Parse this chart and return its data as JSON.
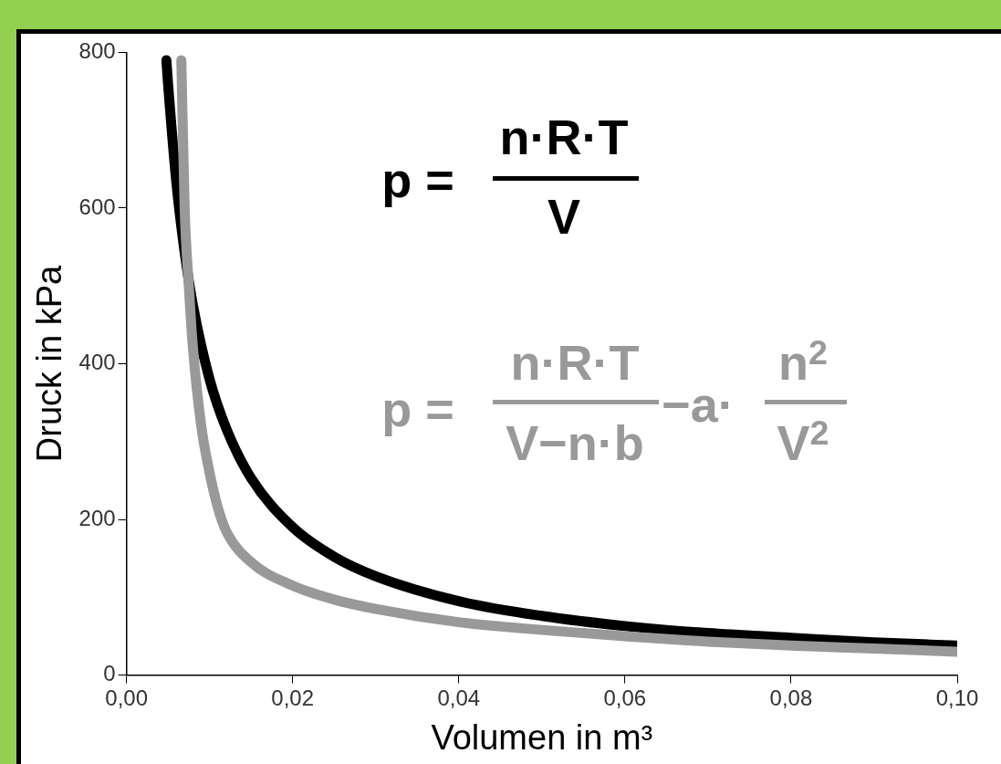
{
  "chart_data": {
    "type": "line",
    "xlabel": "Volumen in m³",
    "ylabel": "Druck in kPa",
    "xlim": [
      0,
      0.1
    ],
    "xticks": [
      {
        "value": 0,
        "label": "0,00"
      },
      {
        "value": 0.02,
        "label": "0,02"
      },
      {
        "value": 0.04,
        "label": "0,04"
      },
      {
        "value": 0.06,
        "label": "0,06"
      },
      {
        "value": 0.08,
        "label": "0,08"
      },
      {
        "value": 0.1,
        "label": "0,10"
      }
    ],
    "ylim": [
      0,
      800
    ],
    "yticks": [
      0,
      200,
      400,
      600,
      800
    ],
    "grid": false,
    "legend": false,
    "marker": "none",
    "line_style": "solid",
    "series": [
      {
        "color": "#000000",
        "x": [
          0.0048,
          0.005,
          0.006,
          0.007,
          0.008,
          0.01,
          0.012,
          0.015,
          0.02,
          0.025,
          0.03,
          0.04,
          0.05,
          0.06,
          0.07,
          0.08,
          0.09,
          0.1
        ],
        "values": [
          790,
          760,
          633,
          543,
          475,
          380,
          317,
          253,
          190,
          152,
          127,
          95,
          76,
          63,
          54,
          48,
          42,
          38
        ]
      },
      {
        "color": "#999999",
        "x": [
          0.0066,
          0.007,
          0.0075,
          0.008,
          0.009,
          0.01,
          0.011,
          0.012,
          0.015,
          0.02,
          0.025,
          0.03,
          0.04,
          0.05,
          0.06,
          0.07,
          0.08,
          0.09,
          0.1
        ],
        "values": [
          790,
          600,
          500,
          420,
          320,
          260,
          215,
          185,
          145,
          115,
          97,
          85,
          68,
          58,
          50,
          43,
          38,
          34,
          30
        ]
      }
    ],
    "annotations": [
      "p =",
      "n·R·T",
      "V",
      "p =",
      "n·R·T",
      "V−n·b",
      "−a·",
      "n$^{2}$",
      "V$^{2}$"
    ]
  }
}
